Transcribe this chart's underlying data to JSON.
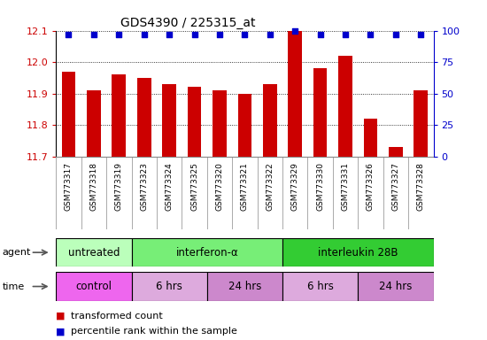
{
  "title": "GDS4390 / 225315_at",
  "samples": [
    "GSM773317",
    "GSM773318",
    "GSM773319",
    "GSM773323",
    "GSM773324",
    "GSM773325",
    "GSM773320",
    "GSM773321",
    "GSM773322",
    "GSM773329",
    "GSM773330",
    "GSM773331",
    "GSM773326",
    "GSM773327",
    "GSM773328"
  ],
  "transformed_counts": [
    11.97,
    11.91,
    11.96,
    11.95,
    11.93,
    11.92,
    11.91,
    11.9,
    11.93,
    12.1,
    11.98,
    12.02,
    11.82,
    11.73,
    11.91
  ],
  "percentile_ranks": [
    97,
    97,
    97,
    97,
    97,
    97,
    97,
    97,
    97,
    100,
    97,
    97,
    97,
    97,
    97
  ],
  "ylim_left": [
    11.7,
    12.1
  ],
  "ylim_right": [
    0,
    100
  ],
  "yticks_left": [
    11.7,
    11.8,
    11.9,
    12.0,
    12.1
  ],
  "yticks_right": [
    0,
    25,
    50,
    75,
    100
  ],
  "agent_groups": [
    {
      "label": "untreated",
      "start": 0,
      "end": 3,
      "color": "#bbffbb"
    },
    {
      "label": "interferon-α",
      "start": 3,
      "end": 9,
      "color": "#77ee77"
    },
    {
      "label": "interleukin 28B",
      "start": 9,
      "end": 15,
      "color": "#33cc33"
    }
  ],
  "time_groups": [
    {
      "label": "control",
      "start": 0,
      "end": 3,
      "color": "#ee66ee"
    },
    {
      "label": "6 hrs",
      "start": 3,
      "end": 6,
      "color": "#ddaadd"
    },
    {
      "label": "24 hrs",
      "start": 6,
      "end": 9,
      "color": "#cc88cc"
    },
    {
      "label": "6 hrs",
      "start": 9,
      "end": 12,
      "color": "#ddaadd"
    },
    {
      "label": "24 hrs",
      "start": 12,
      "end": 15,
      "color": "#cc88cc"
    }
  ],
  "bar_color": "#cc0000",
  "dot_color": "#0000cc",
  "bar_width": 0.55,
  "grid_color": "#000000",
  "bg_color": "#ffffff",
  "tick_label_color_left": "#cc0000",
  "tick_label_color_right": "#0000cc",
  "legend_items": [
    {
      "color": "#cc0000",
      "label": "transformed count"
    },
    {
      "color": "#0000cc",
      "label": "percentile rank within the sample"
    }
  ]
}
